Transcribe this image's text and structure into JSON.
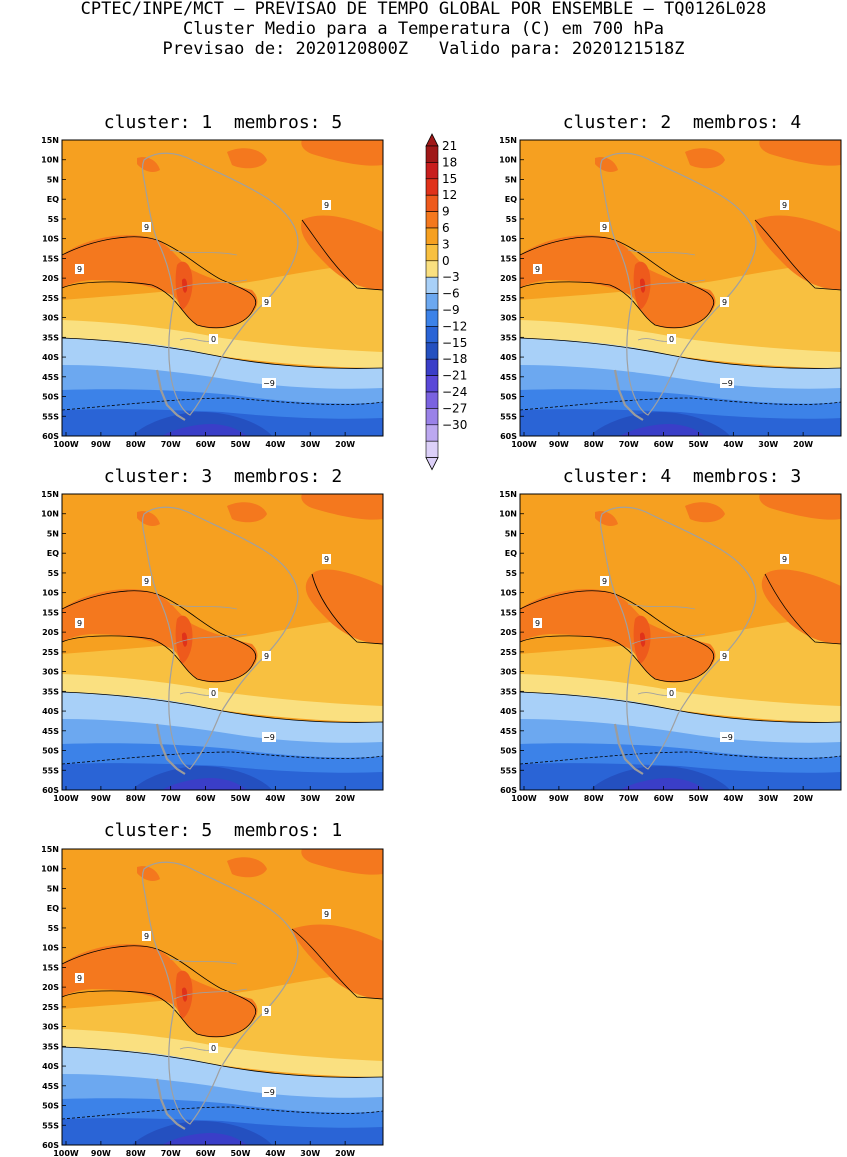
{
  "header": {
    "line1": "CPTEC/INPE/MCT – PREVISAO DE TEMPO GLOBAL POR ENSEMBLE – TQ0126L028",
    "line2": "Cluster Medio para a Temperatura (C) em 700 hPa",
    "line3": "Previsao de: 2020120800Z   Valido para: 2020121518Z"
  },
  "panels": [
    {
      "title": "cluster: 1  membros: 5"
    },
    {
      "title": "cluster: 2  membros: 4"
    },
    {
      "title": "cluster: 3  membros: 2"
    },
    {
      "title": "cluster: 4  membros: 3"
    },
    {
      "title": "cluster: 5  membros: 1"
    }
  ],
  "lat_labels": [
    "15N",
    "10N",
    "5N",
    "EQ",
    "5S",
    "10S",
    "15S",
    "20S",
    "25S",
    "30S",
    "35S",
    "40S",
    "45S",
    "50S",
    "55S",
    "60S"
  ],
  "lon_labels": [
    "100W",
    "90W",
    "80W",
    "70W",
    "60W",
    "50W",
    "40W",
    "30W",
    "20W"
  ],
  "colorbar": {
    "labels": [
      "21",
      "18",
      "15",
      "12",
      "9",
      "6",
      "3",
      "0",
      "−3",
      "−6",
      "−9",
      "−12",
      "−15",
      "−18",
      "−21",
      "−24",
      "−27",
      "−30"
    ],
    "colors": [
      "#a01818",
      "#c81e1e",
      "#e0321a",
      "#ee5a1c",
      "#f4781e",
      "#f6a020",
      "#f8c040",
      "#fae080",
      "#a8d0f8",
      "#6ca8f0",
      "#3c82e8",
      "#2a64d6",
      "#2450c0",
      "#3a3ec8",
      "#5a48d8",
      "#7a62e0",
      "#9a82e8",
      "#bca8f0",
      "#dcd0f8"
    ]
  },
  "contour_labels": {
    "nine": "9",
    "zero": "0",
    "neg9": "−9"
  }
}
